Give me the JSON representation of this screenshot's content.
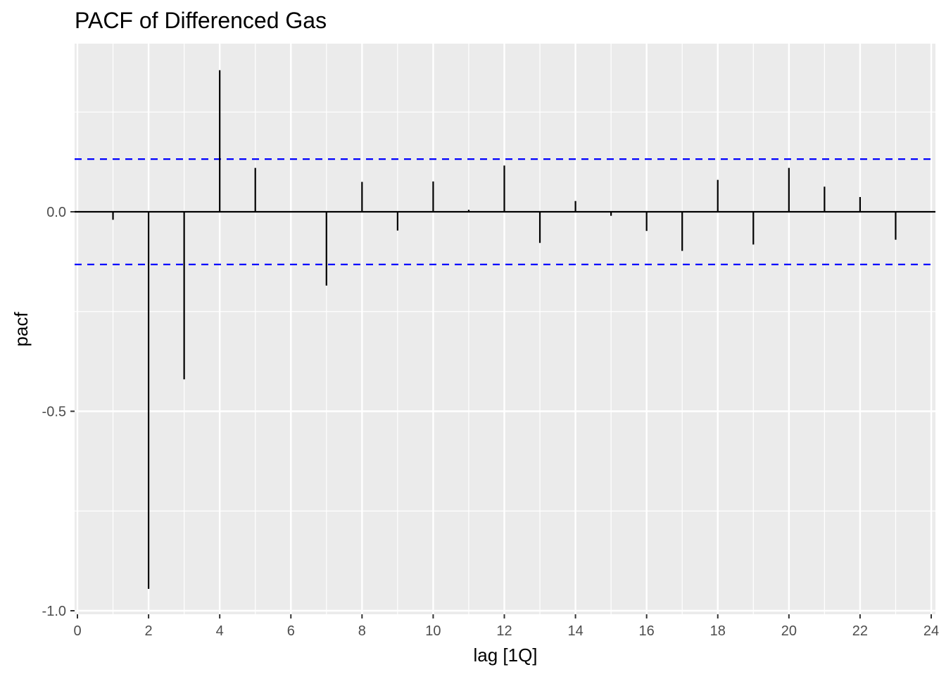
{
  "chart_data": {
    "type": "bar",
    "title": "PACF of Differenced Gas",
    "xlabel": "lag [1Q]",
    "ylabel": "pacf",
    "xlim": [
      0,
      24
    ],
    "ylim": [
      -1.0,
      0.36
    ],
    "x_ticks": [
      0,
      2,
      4,
      6,
      8,
      10,
      12,
      14,
      16,
      18,
      20,
      22,
      24
    ],
    "y_ticks": [
      -1.0,
      -0.5,
      0.0
    ],
    "y_tick_labels": [
      "-1.0",
      "-0.5",
      "0.0"
    ],
    "grid": true,
    "lags": [
      1,
      2,
      3,
      4,
      5,
      6,
      7,
      8,
      9,
      10,
      11,
      12,
      13,
      14,
      15,
      16,
      17,
      18,
      19,
      20,
      21,
      22,
      23
    ],
    "values": [
      -0.02,
      -0.945,
      -0.42,
      0.355,
      0.11,
      0.0,
      -0.185,
      0.075,
      -0.047,
      0.076,
      0.005,
      0.116,
      -0.078,
      0.027,
      -0.01,
      -0.048,
      -0.098,
      0.08,
      -0.082,
      0.11,
      0.063,
      0.037,
      -0.07
    ],
    "confidence_bounds": [
      0.132,
      -0.132
    ],
    "colors": {
      "panel_background": "#ebebeb",
      "grid": "#ffffff",
      "bars": "#000000",
      "confidence_lines": "#0000ff"
    }
  }
}
